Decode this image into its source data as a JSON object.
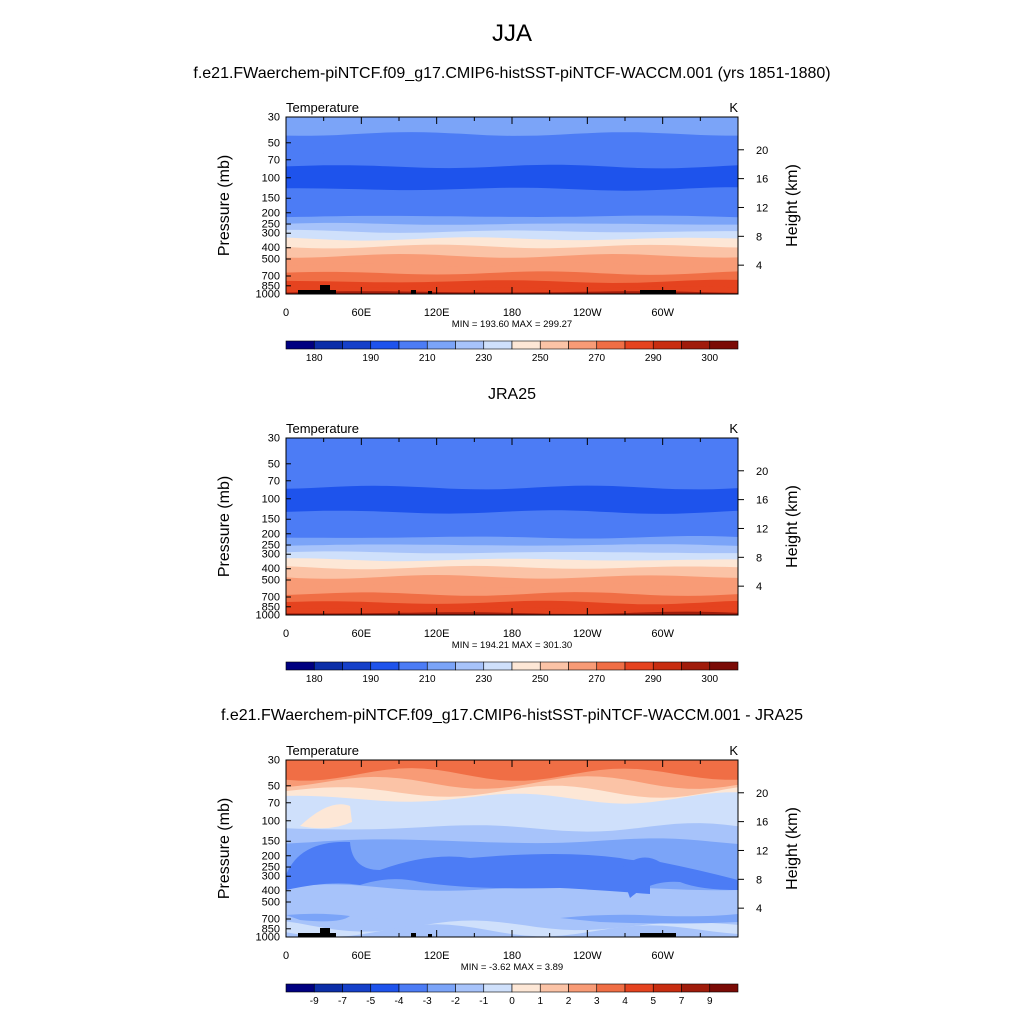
{
  "page": {
    "title": "JJA"
  },
  "panels": [
    {
      "id": "model",
      "title": "f.e21.FWaerchem-piNTCF.f09_g17.CMIP6-histSST-piNTCF-WACCM.001 (yrs 1851-1880)",
      "variable": "Temperature",
      "units": "K",
      "stats": "MIN = 193.60  MAX = 299.27"
    },
    {
      "id": "obs",
      "title": "JRA25",
      "variable": "Temperature",
      "units": "K",
      "stats": "MIN = 194.21  MAX = 301.30"
    },
    {
      "id": "diff",
      "title": "f.e21.FWaerchem-piNTCF.f09_g17.CMIP6-histSST-piNTCF-WACCM.001 - JRA25",
      "variable": "Temperature",
      "units": "K",
      "stats": "MIN =  -3.62  MAX =   3.89"
    }
  ],
  "chart_data": [
    {
      "type": "heatmap",
      "title": "f.e21.FWaerchem-piNTCF.f09_g17.CMIP6-histSST-piNTCF-WACCM.001 (yrs 1851-1880)",
      "subtitle": "Temperature",
      "units": "K",
      "xlabel": "",
      "ylabel": "Pressure (mb)",
      "ylabel_right": "Height (km)",
      "x_ticks": [
        "0",
        "60E",
        "120E",
        "180",
        "120W",
        "60W"
      ],
      "x_range": [
        0,
        360
      ],
      "y_ticks": [
        "30",
        "50",
        "70",
        "100",
        "150",
        "200",
        "250",
        "300",
        "400",
        "500",
        "700",
        "850",
        "1000"
      ],
      "y_ticks_right": [
        "20",
        "16",
        "12",
        "8",
        "4"
      ],
      "y_range": [
        30,
        1000
      ],
      "y_scale": "log",
      "colorbar_labels": [
        "180",
        "190",
        "210",
        "230",
        "250",
        "270",
        "290",
        "300"
      ],
      "min": 193.6,
      "max": 299.27,
      "layers": [
        {
          "p": 30,
          "value": 215
        },
        {
          "p": 42,
          "value": 205
        },
        {
          "p": 62,
          "value": 200
        },
        {
          "p": 80,
          "value": 195
        },
        {
          "p": 125,
          "value": 200
        },
        {
          "p": 175,
          "value": 205
        },
        {
          "p": 215,
          "value": 215
        },
        {
          "p": 250,
          "value": 225
        },
        {
          "p": 290,
          "value": 235
        },
        {
          "p": 335,
          "value": 245
        },
        {
          "p": 390,
          "value": 255
        },
        {
          "p": 470,
          "value": 260
        },
        {
          "p": 560,
          "value": 265
        },
        {
          "p": 660,
          "value": 275
        },
        {
          "p": 780,
          "value": 280
        },
        {
          "p": 880,
          "value": 285
        },
        {
          "p": 960,
          "value": 295
        }
      ]
    },
    {
      "type": "heatmap",
      "title": "JRA25",
      "subtitle": "Temperature",
      "units": "K",
      "xlabel": "",
      "ylabel": "Pressure (mb)",
      "ylabel_right": "Height (km)",
      "x_ticks": [
        "0",
        "60E",
        "120E",
        "180",
        "120W",
        "60W"
      ],
      "x_range": [
        0,
        360
      ],
      "y_ticks": [
        "30",
        "50",
        "70",
        "100",
        "150",
        "200",
        "250",
        "300",
        "400",
        "500",
        "700",
        "850",
        "1000"
      ],
      "y_ticks_right": [
        "20",
        "16",
        "12",
        "8",
        "4"
      ],
      "y_range": [
        30,
        1000
      ],
      "y_scale": "log",
      "colorbar_labels": [
        "180",
        "190",
        "210",
        "230",
        "250",
        "270",
        "290",
        "300"
      ],
      "min": 194.21,
      "max": 301.3,
      "layers": [
        {
          "p": 30,
          "value": 205
        },
        {
          "p": 45,
          "value": 200
        },
        {
          "p": 80,
          "value": 195
        },
        {
          "p": 130,
          "value": 200
        },
        {
          "p": 180,
          "value": 205
        },
        {
          "p": 215,
          "value": 215
        },
        {
          "p": 250,
          "value": 225
        },
        {
          "p": 290,
          "value": 235
        },
        {
          "p": 335,
          "value": 245
        },
        {
          "p": 390,
          "value": 255
        },
        {
          "p": 470,
          "value": 260
        },
        {
          "p": 560,
          "value": 265
        },
        {
          "p": 660,
          "value": 275
        },
        {
          "p": 780,
          "value": 280
        },
        {
          "p": 880,
          "value": 285
        },
        {
          "p": 960,
          "value": 295
        }
      ]
    },
    {
      "type": "heatmap",
      "title": "f.e21.FWaerchem-piNTCF.f09_g17.CMIP6-histSST-piNTCF-WACCM.001 - JRA25",
      "subtitle": "Temperature",
      "units": "K",
      "xlabel": "",
      "ylabel": "Pressure (mb)",
      "ylabel_right": "Height (km)",
      "x_ticks": [
        "0",
        "60E",
        "120E",
        "180",
        "120W",
        "60W"
      ],
      "x_range": [
        0,
        360
      ],
      "y_ticks": [
        "30",
        "50",
        "70",
        "100",
        "150",
        "200",
        "250",
        "300",
        "400",
        "500",
        "700",
        "850",
        "1000"
      ],
      "y_ticks_right": [
        "20",
        "16",
        "12",
        "8",
        "4"
      ],
      "y_range": [
        30,
        1000
      ],
      "y_scale": "log",
      "colorbar_labels": [
        "-9",
        "-7",
        "-5",
        "-4",
        "-3",
        "-2",
        "-1",
        "0",
        "1",
        "2",
        "3",
        "4",
        "5",
        "7",
        "9"
      ],
      "min": -3.62,
      "max": 3.89,
      "layers": [
        {
          "p": 30,
          "value": 3.5
        },
        {
          "p": 40,
          "value": 2.5
        },
        {
          "p": 47,
          "value": 1.5
        },
        {
          "p": 56,
          "value": 0.5
        },
        {
          "p": 64,
          "value": -0.5
        },
        {
          "p": 115,
          "value": -1.5
        },
        {
          "p": 150,
          "value": -2.5
        },
        {
          "p": 380,
          "value": -1.5
        },
        {
          "p": 650,
          "value": -1.5
        },
        {
          "p": 800,
          "value": -0.5
        },
        {
          "p": 880,
          "value": -1.5
        }
      ]
    }
  ]
}
